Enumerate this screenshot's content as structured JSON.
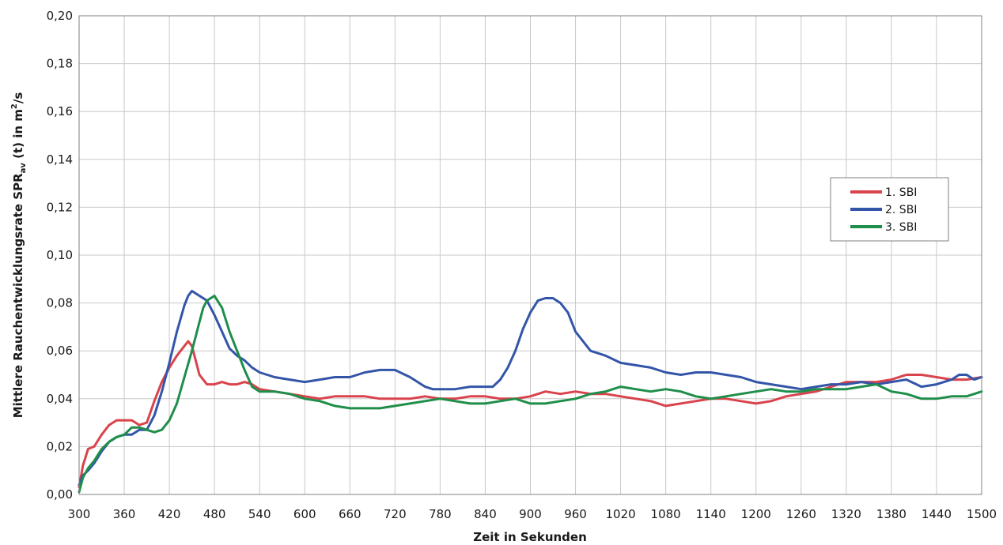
{
  "chart_data": {
    "type": "line",
    "title": "",
    "xlabel": "Zeit in Sekunden",
    "ylabel": {
      "main": "Mittlere Rauchentwicklungsrate SPR",
      "sub": "av",
      "after": " (t) in m",
      "sup": "2",
      "end": "/s"
    },
    "xlim": [
      300,
      1500
    ],
    "ylim": [
      0,
      0.2
    ],
    "xticks": [
      300,
      360,
      420,
      480,
      540,
      600,
      660,
      720,
      780,
      840,
      900,
      960,
      1020,
      1080,
      1140,
      1200,
      1260,
      1320,
      1380,
      1440,
      1500
    ],
    "xtick_labels": [
      "300",
      "360",
      "420",
      "480",
      "540",
      "600",
      "660",
      "720",
      "780",
      "840",
      "900",
      "960",
      "1020",
      "1080",
      "1140",
      "1200",
      "1260",
      "1320",
      "1380",
      "1440",
      "1500"
    ],
    "yticks": [
      0,
      0.02,
      0.04,
      0.06,
      0.08,
      0.1,
      0.12,
      0.14,
      0.16,
      0.18,
      0.2
    ],
    "ytick_labels": [
      "0,00",
      "0,02",
      "0,04",
      "0,06",
      "0,08",
      "0,10",
      "0,12",
      "0,14",
      "0,16",
      "0,18",
      "0,20"
    ],
    "grid": true,
    "legend": "right",
    "series": [
      {
        "name": "1. SBI",
        "color": "#d9434c",
        "x": [
          300,
          305,
          312,
          320,
          330,
          340,
          350,
          360,
          370,
          380,
          390,
          400,
          410,
          420,
          430,
          440,
          445,
          450,
          455,
          460,
          470,
          480,
          490,
          500,
          510,
          520,
          530,
          540,
          560,
          580,
          600,
          620,
          640,
          660,
          680,
          700,
          720,
          740,
          760,
          780,
          800,
          820,
          840,
          860,
          880,
          900,
          920,
          940,
          960,
          980,
          1000,
          1020,
          1040,
          1060,
          1080,
          1100,
          1120,
          1140,
          1160,
          1180,
          1200,
          1220,
          1240,
          1260,
          1280,
          1300,
          1320,
          1340,
          1360,
          1380,
          1400,
          1420,
          1440,
          1460,
          1480,
          1500
        ],
        "y": [
          0.003,
          0.012,
          0.019,
          0.02,
          0.025,
          0.029,
          0.031,
          0.031,
          0.031,
          0.029,
          0.03,
          0.039,
          0.047,
          0.053,
          0.058,
          0.062,
          0.064,
          0.062,
          0.056,
          0.05,
          0.046,
          0.046,
          0.047,
          0.046,
          0.046,
          0.047,
          0.046,
          0.044,
          0.043,
          0.042,
          0.041,
          0.04,
          0.041,
          0.041,
          0.041,
          0.04,
          0.04,
          0.04,
          0.041,
          0.04,
          0.04,
          0.041,
          0.041,
          0.04,
          0.04,
          0.041,
          0.043,
          0.042,
          0.043,
          0.042,
          0.042,
          0.041,
          0.04,
          0.039,
          0.037,
          0.038,
          0.039,
          0.04,
          0.04,
          0.039,
          0.038,
          0.039,
          0.041,
          0.042,
          0.043,
          0.045,
          0.047,
          0.047,
          0.047,
          0.048,
          0.05,
          0.05,
          0.049,
          0.048,
          0.048,
          0.049
        ]
      },
      {
        "name": "2. SBI",
        "color": "#3355a8",
        "x": [
          300,
          305,
          312,
          320,
          330,
          340,
          350,
          360,
          370,
          380,
          390,
          400,
          410,
          420,
          430,
          440,
          445,
          450,
          455,
          460,
          465,
          470,
          480,
          490,
          500,
          510,
          520,
          530,
          540,
          560,
          580,
          600,
          620,
          640,
          660,
          680,
          700,
          720,
          740,
          760,
          770,
          780,
          800,
          820,
          840,
          850,
          860,
          870,
          880,
          890,
          900,
          910,
          920,
          930,
          940,
          950,
          960,
          980,
          1000,
          1020,
          1040,
          1060,
          1080,
          1100,
          1120,
          1140,
          1160,
          1180,
          1200,
          1220,
          1240,
          1260,
          1280,
          1300,
          1320,
          1340,
          1360,
          1380,
          1400,
          1420,
          1440,
          1460,
          1470,
          1480,
          1490,
          1500
        ],
        "y": [
          0.004,
          0.008,
          0.01,
          0.013,
          0.018,
          0.022,
          0.024,
          0.025,
          0.025,
          0.027,
          0.027,
          0.033,
          0.043,
          0.055,
          0.068,
          0.079,
          0.083,
          0.085,
          0.084,
          0.083,
          0.082,
          0.081,
          0.075,
          0.068,
          0.061,
          0.058,
          0.056,
          0.053,
          0.051,
          0.049,
          0.048,
          0.047,
          0.048,
          0.049,
          0.049,
          0.051,
          0.052,
          0.052,
          0.049,
          0.045,
          0.044,
          0.044,
          0.044,
          0.045,
          0.045,
          0.045,
          0.048,
          0.053,
          0.06,
          0.069,
          0.076,
          0.081,
          0.082,
          0.082,
          0.08,
          0.076,
          0.068,
          0.06,
          0.058,
          0.055,
          0.054,
          0.053,
          0.051,
          0.05,
          0.051,
          0.051,
          0.05,
          0.049,
          0.047,
          0.046,
          0.045,
          0.044,
          0.045,
          0.046,
          0.046,
          0.047,
          0.046,
          0.047,
          0.048,
          0.045,
          0.046,
          0.048,
          0.05,
          0.05,
          0.048,
          0.049
        ]
      },
      {
        "name": "3. SBI",
        "color": "#1f8e4a",
        "x": [
          300,
          305,
          312,
          320,
          330,
          340,
          350,
          360,
          370,
          380,
          390,
          400,
          410,
          420,
          430,
          440,
          450,
          455,
          460,
          465,
          470,
          480,
          490,
          500,
          510,
          520,
          530,
          540,
          560,
          580,
          600,
          620,
          640,
          660,
          680,
          700,
          720,
          740,
          760,
          780,
          800,
          820,
          840,
          860,
          880,
          900,
          920,
          940,
          960,
          980,
          1000,
          1020,
          1040,
          1060,
          1080,
          1100,
          1120,
          1140,
          1160,
          1180,
          1200,
          1220,
          1240,
          1260,
          1280,
          1300,
          1320,
          1340,
          1360,
          1380,
          1400,
          1420,
          1440,
          1460,
          1480,
          1500
        ],
        "y": [
          0.001,
          0.007,
          0.011,
          0.014,
          0.019,
          0.022,
          0.024,
          0.025,
          0.028,
          0.028,
          0.027,
          0.026,
          0.027,
          0.031,
          0.038,
          0.049,
          0.06,
          0.066,
          0.072,
          0.078,
          0.081,
          0.083,
          0.078,
          0.068,
          0.06,
          0.052,
          0.045,
          0.043,
          0.043,
          0.042,
          0.04,
          0.039,
          0.037,
          0.036,
          0.036,
          0.036,
          0.037,
          0.038,
          0.039,
          0.04,
          0.039,
          0.038,
          0.038,
          0.039,
          0.04,
          0.038,
          0.038,
          0.039,
          0.04,
          0.042,
          0.043,
          0.045,
          0.044,
          0.043,
          0.044,
          0.043,
          0.041,
          0.04,
          0.041,
          0.042,
          0.043,
          0.044,
          0.043,
          0.043,
          0.044,
          0.044,
          0.044,
          0.045,
          0.046,
          0.043,
          0.042,
          0.04,
          0.04,
          0.041,
          0.041,
          0.043
        ]
      }
    ]
  }
}
